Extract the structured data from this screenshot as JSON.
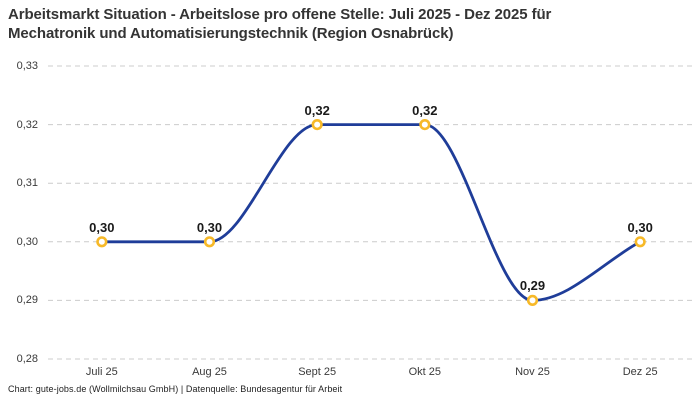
{
  "title": {
    "line1": "Arbeitsmarkt Situation - Arbeitslose pro offene Stelle: Juli 2025 - Dez 2025 für",
    "line2": "Mechatronik und Automatisierungstechnik (Region Osnabrück)"
  },
  "footer": {
    "text": "Chart: gute-jobs.de (Wollmilchsau GmbH) | Datenquelle: Bundesagentur für Arbeit"
  },
  "chart_data": {
    "type": "line",
    "title": "Arbeitsmarkt Situation - Arbeitslose pro offene Stelle: Juli 2025 - Dez 2025 für Mechatronik und Automatisierungstechnik (Region Osnabrück)",
    "categories": [
      "Juli 25",
      "Aug 25",
      "Sept 25",
      "Okt 25",
      "Nov 25",
      "Dez 25"
    ],
    "values": [
      0.3,
      0.3,
      0.32,
      0.32,
      0.29,
      0.3
    ],
    "point_labels": [
      "0,30",
      "0,30",
      "0,32",
      "0,32",
      "0,29",
      "0,30"
    ],
    "y_ticks": [
      {
        "label": "0,33",
        "value": 0.33
      },
      {
        "label": "0,32",
        "value": 0.32
      },
      {
        "label": "0,31",
        "value": 0.31
      },
      {
        "label": "0,30",
        "value": 0.3
      },
      {
        "label": "0,29",
        "value": 0.29
      },
      {
        "label": "0,28",
        "value": 0.28
      }
    ],
    "ylim": [
      0.28,
      0.33
    ],
    "xlabel": "",
    "ylabel": "",
    "legend": "none",
    "grid": "horizontal-dashed",
    "curve": "monotone",
    "colors": {
      "line": "#1f3d99",
      "marker_ring": "#f7b928",
      "marker_fill": "#ffffff",
      "grid": "#cccccc",
      "point_label": "#1a1a1a",
      "tick_label": "#3a3a3a",
      "title": "#343434",
      "footer": "#222222",
      "background": "#ffffff"
    }
  }
}
